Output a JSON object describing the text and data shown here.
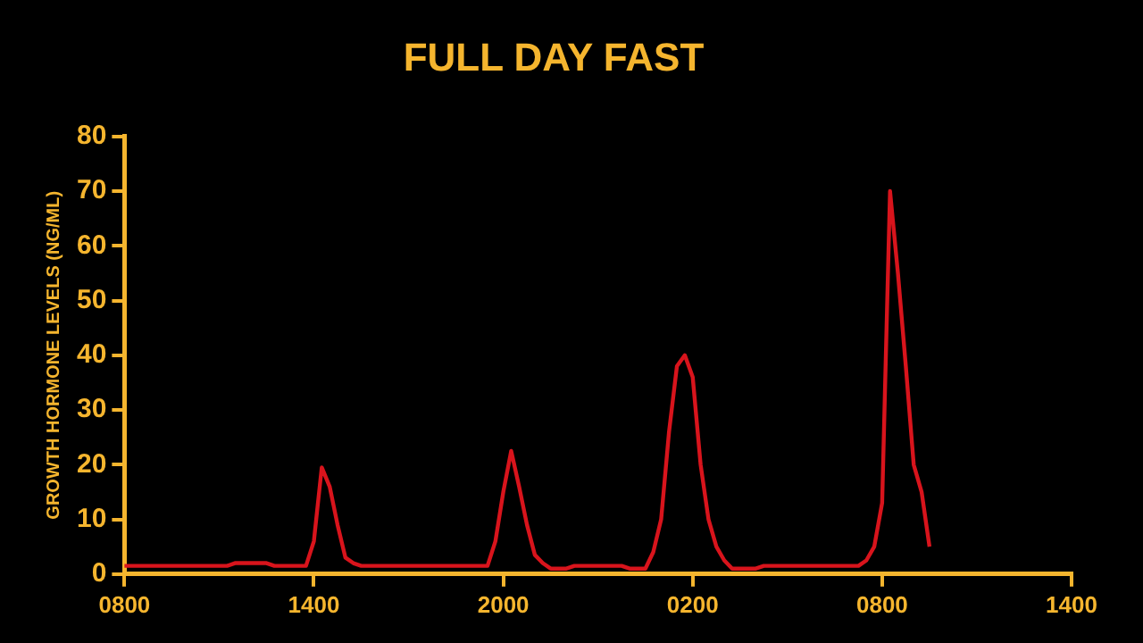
{
  "chart_data": {
    "type": "line",
    "title": "FULL DAY FAST",
    "ylabel": "GROWTH HORMONE LEVELS (NG/ML)",
    "categories": [
      "0800",
      null,
      null,
      null,
      null,
      null,
      null,
      null,
      null,
      null,
      null,
      null,
      null,
      null,
      null,
      null,
      null,
      null,
      null,
      null,
      null,
      null,
      null,
      null,
      "1400",
      null,
      null,
      null,
      null,
      null,
      null,
      null,
      null,
      null,
      null,
      null,
      null,
      null,
      null,
      null,
      null,
      null,
      null,
      null,
      null,
      null,
      null,
      null,
      "2000",
      null,
      null,
      null,
      null,
      null,
      null,
      null,
      null,
      null,
      null,
      null,
      null,
      null,
      null,
      null,
      null,
      null,
      null,
      null,
      null,
      null,
      null,
      null,
      "0200",
      null,
      null,
      null,
      null,
      null,
      null,
      null,
      null,
      null,
      null,
      null,
      null,
      null,
      null,
      null,
      null,
      null,
      null,
      null,
      null,
      null,
      null,
      null,
      "0800",
      null,
      null,
      null,
      null,
      null,
      null,
      null,
      null,
      null,
      null,
      null,
      null,
      null,
      null,
      null,
      null,
      null,
      null,
      null,
      null,
      null,
      null,
      null,
      "1400"
    ],
    "series": [
      {
        "color": "#d8141c",
        "values": [
          1.5,
          1.5,
          1.5,
          1.5,
          1.5,
          1.5,
          1.5,
          1.5,
          1.5,
          1.5,
          1.5,
          1.5,
          1.5,
          1.5,
          2,
          2,
          2,
          2,
          2,
          1.5,
          1.5,
          1.5,
          1.5,
          1.5,
          6,
          19.5,
          16,
          9,
          3,
          2,
          1.5,
          1.5,
          1.5,
          1.5,
          1.5,
          1.5,
          1.5,
          1.5,
          1.5,
          1.5,
          1.5,
          1.5,
          1.5,
          1.5,
          1.5,
          1.5,
          1.5,
          6,
          15,
          22.5,
          16,
          9,
          3.5,
          2,
          1,
          1,
          1,
          1.5,
          1.5,
          1.5,
          1.5,
          1.5,
          1.5,
          1.5,
          1,
          1,
          1,
          4,
          10,
          26,
          38,
          40,
          36,
          20,
          10,
          5,
          2.5,
          1,
          1,
          1,
          1,
          1.5,
          1.5,
          1.5,
          1.5,
          1.5,
          1.5,
          1.5,
          1.5,
          1.5,
          1.5,
          1.5,
          1.5,
          1.5,
          2.5,
          5,
          13,
          70,
          55,
          38,
          20,
          15,
          5,
          null,
          null,
          null,
          null,
          null,
          null,
          null,
          null,
          null,
          null,
          null,
          null,
          null,
          null,
          null,
          null,
          null,
          null
        ]
      }
    ],
    "ylim": [
      0,
      80
    ],
    "yticks": [
      0,
      10,
      20,
      30,
      40,
      50,
      60,
      70,
      80
    ],
    "grid": false,
    "legend": false,
    "marker": "none",
    "line_style": "solid"
  }
}
